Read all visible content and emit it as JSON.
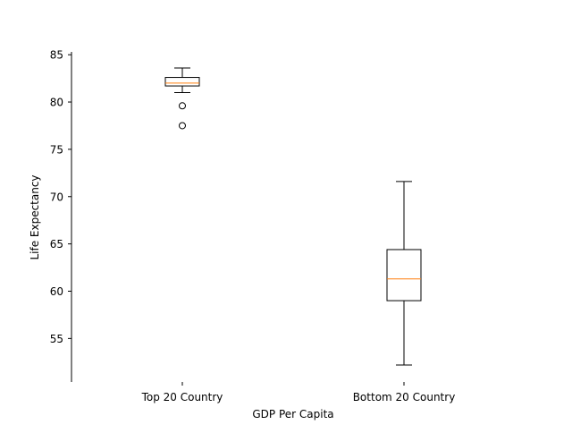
{
  "chart_data": {
    "type": "box",
    "title": "",
    "xlabel": "GDP Per Capita",
    "ylabel": "Life Expectancy",
    "ylim": [
      50.4,
      85.3
    ],
    "yticks": [
      55,
      60,
      65,
      70,
      75,
      80,
      85
    ],
    "ytick_labels": [
      "55",
      "60",
      "65",
      "70",
      "75",
      "80",
      "85"
    ],
    "grid": false,
    "categories": [
      "Top 20 Country",
      "Bottom 20 Country"
    ],
    "boxes": [
      {
        "category": "Top 20 Country",
        "whisker_low": 81.0,
        "q1": 81.7,
        "median": 82.0,
        "q3": 82.6,
        "whisker_high": 83.6,
        "outliers": [
          79.6,
          77.5
        ]
      },
      {
        "category": "Bottom 20 Country",
        "whisker_low": 52.2,
        "q1": 59.0,
        "median": 61.3,
        "q3": 64.4,
        "whisker_high": 71.6,
        "outliers": []
      }
    ],
    "colors": {
      "box": "#000000",
      "median": "#ff7f0e",
      "axis": "#000000"
    }
  }
}
